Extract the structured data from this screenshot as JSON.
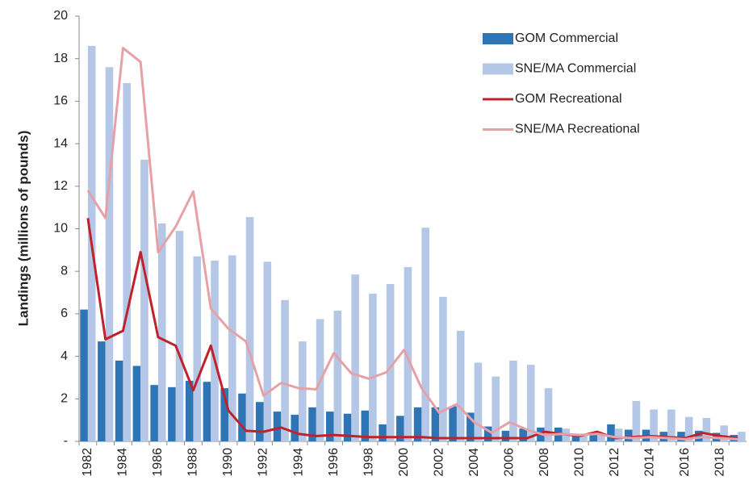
{
  "chart_data": {
    "type": "bar",
    "y_label": "Landings (millions of pounds)",
    "categories": [
      "1982",
      null,
      "1984",
      null,
      "1986",
      null,
      "1988",
      null,
      "1990",
      null,
      "1992",
      null,
      "1994",
      null,
      "1996",
      null,
      "1998",
      null,
      "2000",
      null,
      "2002",
      null,
      "2004",
      null,
      "2006",
      null,
      "2008",
      null,
      "2010",
      null,
      "2012",
      null,
      "2014",
      null,
      "2016",
      null,
      "2018",
      null
    ],
    "ylim": [
      0,
      20
    ],
    "yticks": [
      {
        "value": 0,
        "label": "-"
      },
      2,
      4,
      6,
      8,
      10,
      12,
      14,
      16,
      18,
      20
    ],
    "legend": "upper right",
    "series": [
      {
        "name": "GOM Commercial",
        "type": "bar",
        "color": "#2e75b6",
        "values": [
          6.2,
          4.7,
          3.8,
          3.55,
          2.65,
          2.55,
          2.85,
          2.8,
          2.5,
          2.25,
          1.85,
          1.4,
          1.25,
          1.6,
          1.4,
          1.3,
          1.45,
          0.8,
          1.2,
          1.6,
          1.6,
          1.65,
          1.35,
          0.7,
          0.5,
          0.6,
          0.65,
          0.65,
          0.35,
          0.4,
          0.8,
          0.55,
          0.55,
          0.45,
          0.45,
          0.5,
          0.4,
          0.3
        ]
      },
      {
        "name": "SNE/MA Commercial",
        "type": "bar",
        "color": "#b4c7e7",
        "values": [
          18.6,
          17.6,
          16.85,
          13.25,
          10.25,
          9.9,
          8.7,
          8.5,
          8.75,
          10.55,
          8.45,
          6.65,
          4.7,
          5.75,
          6.15,
          7.85,
          6.95,
          7.4,
          8.2,
          10.05,
          6.8,
          5.2,
          3.7,
          3.05,
          3.8,
          3.6,
          2.5,
          0.6,
          0.3,
          0.35,
          0.6,
          1.9,
          1.5,
          1.5,
          1.15,
          1.1,
          0.75,
          0.45
        ]
      },
      {
        "name": "GOM Recreational",
        "type": "line",
        "color": "#c0222b",
        "values": [
          10.5,
          4.8,
          5.2,
          8.9,
          4.9,
          4.5,
          2.4,
          4.5,
          1.45,
          0.5,
          0.45,
          0.65,
          0.35,
          0.25,
          0.3,
          0.25,
          0.2,
          0.2,
          0.2,
          0.2,
          0.15,
          0.15,
          0.15,
          0.15,
          0.15,
          0.15,
          0.45,
          0.35,
          0.25,
          0.45,
          0.15,
          0.2,
          0.25,
          0.2,
          0.15,
          0.4,
          0.25,
          0.15
        ]
      },
      {
        "name": "SNE/MA Recreational",
        "type": "line",
        "color": "#e6a1a7",
        "values": [
          11.8,
          10.5,
          18.5,
          17.85,
          8.9,
          10.1,
          11.75,
          6.25,
          5.3,
          4.7,
          2.15,
          2.75,
          2.5,
          2.45,
          4.15,
          3.2,
          2.95,
          3.25,
          4.3,
          2.5,
          1.35,
          1.75,
          0.9,
          0.4,
          0.9,
          0.55,
          0.3,
          0.35,
          0.3,
          0.35,
          0.2,
          0.15,
          0.2,
          0.15,
          0.1,
          0.2,
          0.15,
          0.1
        ]
      }
    ]
  }
}
